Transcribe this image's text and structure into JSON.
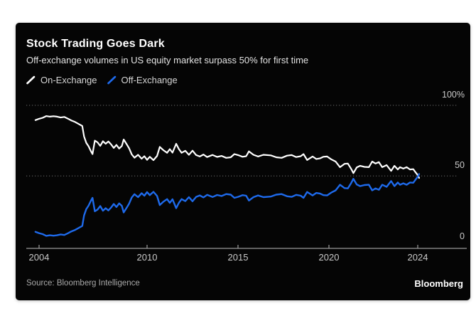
{
  "card": {
    "source": "Source: Bloomberg Intelligence",
    "brand": "Bloomberg"
  },
  "colors": {
    "page_bg": "#ffffff",
    "card_bg": "#050505",
    "grid": "#5a5a5a",
    "axis": "#9b9b9b",
    "tick_label": "#c9c9c9",
    "title": "#ffffff",
    "subtitle": "#e4e4e4",
    "legend_label": "#d6d6d6",
    "source_text": "#a9a9a9",
    "on_exchange": "#ffffff",
    "off_exchange": "#1e6aeb"
  },
  "chart_data": {
    "type": "line",
    "title": "Stock Trading Goes Dark",
    "subtitle": "Off-exchange volumes in US equity market surpass 50% for first time",
    "unit": "%",
    "ylim": [
      0,
      100
    ],
    "xlim": [
      2003.8,
      2024.1
    ],
    "grid": "dotted horizontal gridlines at 50 and 100",
    "legend_position": "top-left",
    "y_ticks": [
      {
        "label": "100%",
        "value": 100,
        "gridline": true
      },
      {
        "label": "50",
        "value": 50,
        "gridline": true
      },
      {
        "label": "0",
        "value": 0,
        "gridline": false
      }
    ],
    "x_ticks": [
      {
        "label": "2004",
        "value": 2004
      },
      {
        "label": "2010",
        "value": 2010
      },
      {
        "label": "2015",
        "value": 2015
      },
      {
        "label": "2020",
        "value": 2020
      },
      {
        "label": "2024",
        "value": 2024
      }
    ],
    "series": [
      {
        "name": "On-Exchange",
        "color": "#ffffff",
        "points": [
          [
            2003.8,
            89.5
          ],
          [
            2004.0,
            90.5
          ],
          [
            2004.2,
            91.2
          ],
          [
            2004.4,
            92.4
          ],
          [
            2004.6,
            92.0
          ],
          [
            2004.8,
            92.3
          ],
          [
            2005.0,
            92.0
          ],
          [
            2005.2,
            91.4
          ],
          [
            2005.4,
            91.8
          ],
          [
            2005.6,
            90.6
          ],
          [
            2005.8,
            89.2
          ],
          [
            2006.0,
            88.2
          ],
          [
            2006.2,
            86.8
          ],
          [
            2006.4,
            85.4
          ],
          [
            2006.5,
            78.0
          ],
          [
            2006.62,
            73.5
          ],
          [
            2006.75,
            71.0
          ],
          [
            2006.88,
            67.5
          ],
          [
            2006.97,
            65.5
          ],
          [
            2007.1,
            75.0
          ],
          [
            2007.25,
            73.8
          ],
          [
            2007.4,
            71.3
          ],
          [
            2007.55,
            74.6
          ],
          [
            2007.7,
            72.8
          ],
          [
            2007.85,
            74.4
          ],
          [
            2008.0,
            72.4
          ],
          [
            2008.15,
            69.8
          ],
          [
            2008.3,
            72.0
          ],
          [
            2008.45,
            69.4
          ],
          [
            2008.6,
            71.2
          ],
          [
            2008.7,
            75.8
          ],
          [
            2008.85,
            72.8
          ],
          [
            2009.0,
            69.6
          ],
          [
            2009.15,
            65.2
          ],
          [
            2009.3,
            62.9
          ],
          [
            2009.5,
            65.0
          ],
          [
            2009.7,
            62.2
          ],
          [
            2009.85,
            64.0
          ],
          [
            2010.0,
            61.4
          ],
          [
            2010.15,
            63.6
          ],
          [
            2010.35,
            61.2
          ],
          [
            2010.55,
            64.2
          ],
          [
            2010.7,
            70.6
          ],
          [
            2010.9,
            68.2
          ],
          [
            2011.1,
            66.4
          ],
          [
            2011.25,
            69.0
          ],
          [
            2011.4,
            66.5
          ],
          [
            2011.6,
            72.8
          ],
          [
            2011.75,
            69.0
          ],
          [
            2011.9,
            66.4
          ],
          [
            2012.1,
            67.8
          ],
          [
            2012.3,
            65.0
          ],
          [
            2012.5,
            67.9
          ],
          [
            2012.7,
            64.8
          ],
          [
            2012.9,
            63.8
          ],
          [
            2013.1,
            65.2
          ],
          [
            2013.3,
            63.4
          ],
          [
            2013.6,
            64.9
          ],
          [
            2013.85,
            63.5
          ],
          [
            2014.1,
            64.2
          ],
          [
            2014.35,
            62.8
          ],
          [
            2014.6,
            63.2
          ],
          [
            2014.8,
            65.5
          ],
          [
            2015.0,
            64.8
          ],
          [
            2015.25,
            63.6
          ],
          [
            2015.45,
            64.0
          ],
          [
            2015.6,
            67.4
          ],
          [
            2015.85,
            65.0
          ],
          [
            2016.1,
            63.8
          ],
          [
            2016.4,
            65.0
          ],
          [
            2016.8,
            64.6
          ],
          [
            2017.1,
            63.2
          ],
          [
            2017.4,
            62.8
          ],
          [
            2017.7,
            64.4
          ],
          [
            2017.95,
            64.8
          ],
          [
            2018.2,
            63.4
          ],
          [
            2018.45,
            64.0
          ],
          [
            2018.6,
            65.5
          ],
          [
            2018.8,
            61.3
          ],
          [
            2019.1,
            63.8
          ],
          [
            2019.3,
            62.0
          ],
          [
            2019.5,
            62.4
          ],
          [
            2019.7,
            63.6
          ],
          [
            2019.9,
            63.8
          ],
          [
            2020.1,
            61.8
          ],
          [
            2020.3,
            60.2
          ],
          [
            2020.5,
            56.2
          ],
          [
            2020.7,
            58.6
          ],
          [
            2020.85,
            58.8
          ],
          [
            2021.0,
            55.0
          ],
          [
            2021.1,
            52.0
          ],
          [
            2021.25,
            56.0
          ],
          [
            2021.4,
            57.2
          ],
          [
            2021.6,
            56.4
          ],
          [
            2021.8,
            56.2
          ],
          [
            2021.95,
            60.2
          ],
          [
            2022.1,
            58.8
          ],
          [
            2022.25,
            59.8
          ],
          [
            2022.4,
            56.2
          ],
          [
            2022.6,
            57.7
          ],
          [
            2022.8,
            53.6
          ],
          [
            2022.95,
            57.2
          ],
          [
            2023.1,
            54.6
          ],
          [
            2023.2,
            56.2
          ],
          [
            2023.35,
            55.2
          ],
          [
            2023.5,
            56.2
          ],
          [
            2023.65,
            54.6
          ],
          [
            2023.8,
            54.8
          ],
          [
            2023.9,
            52.6
          ],
          [
            2024.0,
            50.6
          ],
          [
            2024.06,
            48.6
          ]
        ]
      },
      {
        "name": "Off-Exchange",
        "color": "#1e6aeb",
        "points": [
          [
            2003.8,
            10.5
          ],
          [
            2004.0,
            9.5
          ],
          [
            2004.2,
            8.8
          ],
          [
            2004.4,
            7.6
          ],
          [
            2004.6,
            8.0
          ],
          [
            2004.8,
            7.7
          ],
          [
            2005.0,
            8.0
          ],
          [
            2005.2,
            8.6
          ],
          [
            2005.4,
            8.2
          ],
          [
            2005.6,
            9.4
          ],
          [
            2005.8,
            10.8
          ],
          [
            2006.0,
            11.8
          ],
          [
            2006.2,
            13.2
          ],
          [
            2006.4,
            14.6
          ],
          [
            2006.5,
            22.0
          ],
          [
            2006.62,
            26.5
          ],
          [
            2006.75,
            29.0
          ],
          [
            2006.88,
            32.5
          ],
          [
            2006.97,
            34.5
          ],
          [
            2007.1,
            25.0
          ],
          [
            2007.25,
            26.2
          ],
          [
            2007.4,
            28.7
          ],
          [
            2007.55,
            25.4
          ],
          [
            2007.7,
            27.2
          ],
          [
            2007.85,
            25.6
          ],
          [
            2008.0,
            27.6
          ],
          [
            2008.15,
            30.2
          ],
          [
            2008.3,
            28.0
          ],
          [
            2008.45,
            30.6
          ],
          [
            2008.6,
            28.8
          ],
          [
            2008.7,
            24.2
          ],
          [
            2008.85,
            27.2
          ],
          [
            2009.0,
            30.4
          ],
          [
            2009.15,
            34.8
          ],
          [
            2009.3,
            37.1
          ],
          [
            2009.5,
            35.0
          ],
          [
            2009.7,
            37.8
          ],
          [
            2009.85,
            36.0
          ],
          [
            2010.0,
            38.6
          ],
          [
            2010.15,
            36.4
          ],
          [
            2010.35,
            38.8
          ],
          [
            2010.55,
            35.8
          ],
          [
            2010.7,
            29.4
          ],
          [
            2010.9,
            31.8
          ],
          [
            2011.1,
            33.6
          ],
          [
            2011.25,
            31.0
          ],
          [
            2011.4,
            33.5
          ],
          [
            2011.6,
            27.2
          ],
          [
            2011.75,
            31.0
          ],
          [
            2011.9,
            33.6
          ],
          [
            2012.1,
            32.2
          ],
          [
            2012.3,
            35.0
          ],
          [
            2012.5,
            32.1
          ],
          [
            2012.7,
            35.2
          ],
          [
            2012.9,
            36.2
          ],
          [
            2013.1,
            34.8
          ],
          [
            2013.3,
            36.6
          ],
          [
            2013.6,
            35.1
          ],
          [
            2013.85,
            36.5
          ],
          [
            2014.1,
            35.8
          ],
          [
            2014.35,
            37.2
          ],
          [
            2014.6,
            36.8
          ],
          [
            2014.8,
            34.5
          ],
          [
            2015.0,
            35.2
          ],
          [
            2015.25,
            36.4
          ],
          [
            2015.45,
            36.0
          ],
          [
            2015.6,
            32.6
          ],
          [
            2015.85,
            35.0
          ],
          [
            2016.1,
            36.2
          ],
          [
            2016.4,
            35.0
          ],
          [
            2016.8,
            35.4
          ],
          [
            2017.1,
            36.8
          ],
          [
            2017.4,
            37.2
          ],
          [
            2017.7,
            35.6
          ],
          [
            2017.95,
            35.2
          ],
          [
            2018.2,
            36.6
          ],
          [
            2018.45,
            36.0
          ],
          [
            2018.6,
            34.5
          ],
          [
            2018.8,
            38.7
          ],
          [
            2019.1,
            36.2
          ],
          [
            2019.3,
            38.0
          ],
          [
            2019.5,
            37.6
          ],
          [
            2019.7,
            36.4
          ],
          [
            2019.9,
            36.2
          ],
          [
            2020.1,
            38.2
          ],
          [
            2020.3,
            39.8
          ],
          [
            2020.5,
            43.8
          ],
          [
            2020.7,
            41.4
          ],
          [
            2020.85,
            41.2
          ],
          [
            2021.0,
            45.0
          ],
          [
            2021.1,
            48.0
          ],
          [
            2021.25,
            44.0
          ],
          [
            2021.4,
            42.8
          ],
          [
            2021.6,
            43.6
          ],
          [
            2021.8,
            43.8
          ],
          [
            2021.95,
            39.8
          ],
          [
            2022.1,
            41.2
          ],
          [
            2022.25,
            40.2
          ],
          [
            2022.4,
            43.8
          ],
          [
            2022.6,
            42.3
          ],
          [
            2022.8,
            46.4
          ],
          [
            2022.95,
            42.8
          ],
          [
            2023.1,
            45.4
          ],
          [
            2023.2,
            43.8
          ],
          [
            2023.35,
            44.8
          ],
          [
            2023.5,
            43.8
          ],
          [
            2023.65,
            45.4
          ],
          [
            2023.8,
            45.2
          ],
          [
            2023.9,
            47.4
          ],
          [
            2024.0,
            49.4
          ],
          [
            2024.06,
            51.4
          ]
        ]
      }
    ]
  }
}
